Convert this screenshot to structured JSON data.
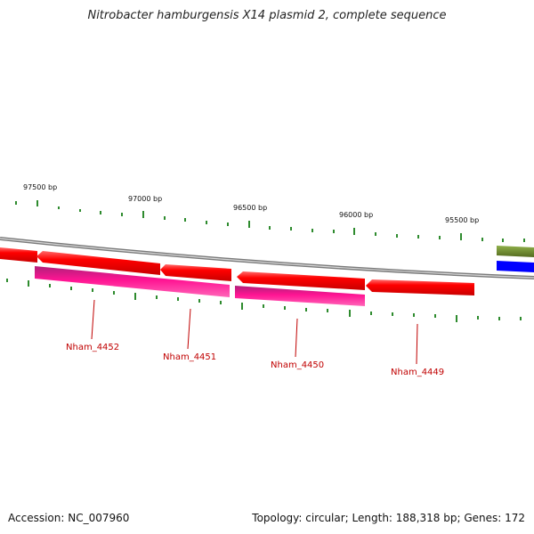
{
  "title": "Nitrobacter hamburgensis X14 plasmid 2, complete sequence",
  "footer": {
    "accession": "Accession: NC_007960",
    "summary": "Topology: circular; Length: 188,318 bp; Genes: 172"
  },
  "ruler_labels": [
    "97500 bp",
    "97000 bp",
    "96500 bp",
    "96000 bp",
    "95500 bp"
  ],
  "gene_labels": [
    "Nham_4452",
    "Nham_4451",
    "Nham_4450",
    "Nham_4449"
  ],
  "colors": {
    "cds": "#ff0000",
    "gene": "#ff1493",
    "backbone": "#888888",
    "ticks": "#2e8b2e",
    "other_feature_green": "#6b8e23",
    "other_feature_blue": "#0000ff",
    "label": "#c00000"
  }
}
